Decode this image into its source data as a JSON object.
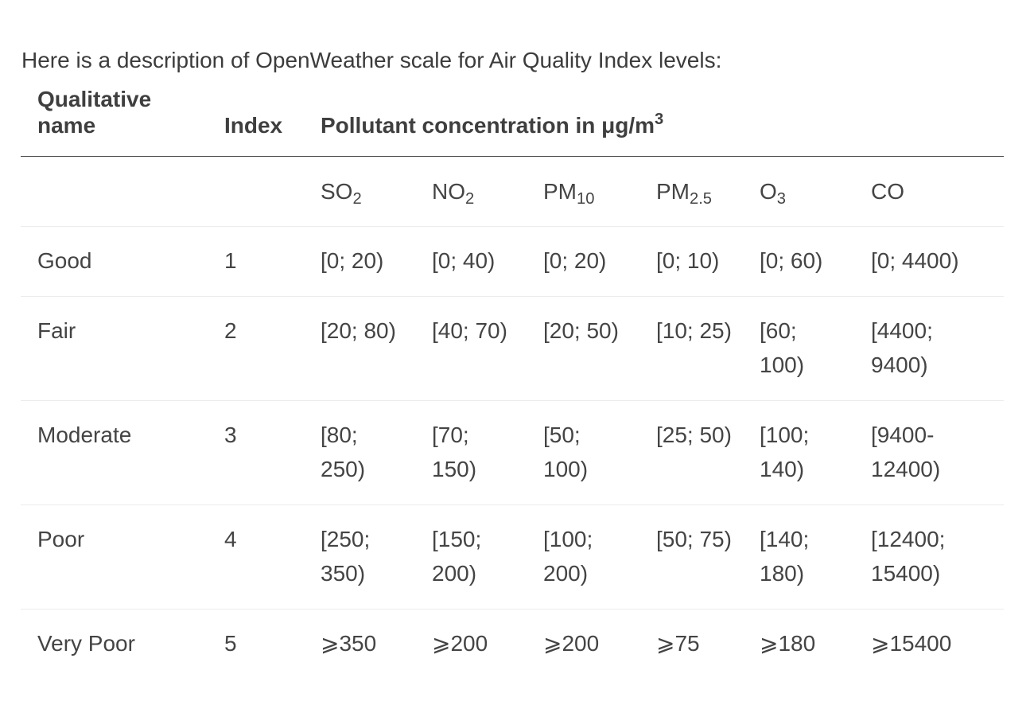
{
  "intro": "Here is a description of OpenWeather scale for Air Quality Index levels:",
  "header": {
    "name": "Qualitative name",
    "index": "Index",
    "pollutant": "Pollutant concentration in μg/m",
    "pollutant_sup": "3"
  },
  "pollutants": [
    {
      "base": "SO",
      "sub": "2"
    },
    {
      "base": "NO",
      "sub": "2"
    },
    {
      "base": "PM",
      "sub": "10"
    },
    {
      "base": "PM",
      "sub": "2.5"
    },
    {
      "base": "O",
      "sub": "3"
    },
    {
      "base": "CO",
      "sub": ""
    }
  ],
  "rows": [
    {
      "name": "Good",
      "index": "1",
      "values": [
        "[0; 20)",
        "[0; 40)",
        "[0; 20)",
        "[0; 10)",
        "[0; 60)",
        "[0; 4400)"
      ]
    },
    {
      "name": "Fair",
      "index": "2",
      "values": [
        "[20; 80)",
        "[40; 70)",
        "[20; 50)",
        "[10; 25)",
        "[60; 100)",
        "[4400; 9400)"
      ]
    },
    {
      "name": "Moderate",
      "index": "3",
      "values": [
        "[80; 250)",
        "[70; 150)",
        "[50; 100)",
        "[25; 50)",
        "[100; 140)",
        "[9400-12400)"
      ]
    },
    {
      "name": "Poor",
      "index": "4",
      "values": [
        "[250; 350)",
        "[150; 200)",
        "[100; 200)",
        "[50; 75)",
        "[140; 180)",
        "[12400; 15400)"
      ]
    },
    {
      "name": "Very Poor",
      "index": "5",
      "values": [
        "⩾350",
        "⩾200",
        "⩾200",
        "⩾75",
        "⩾180",
        "⩾15400"
      ]
    }
  ]
}
